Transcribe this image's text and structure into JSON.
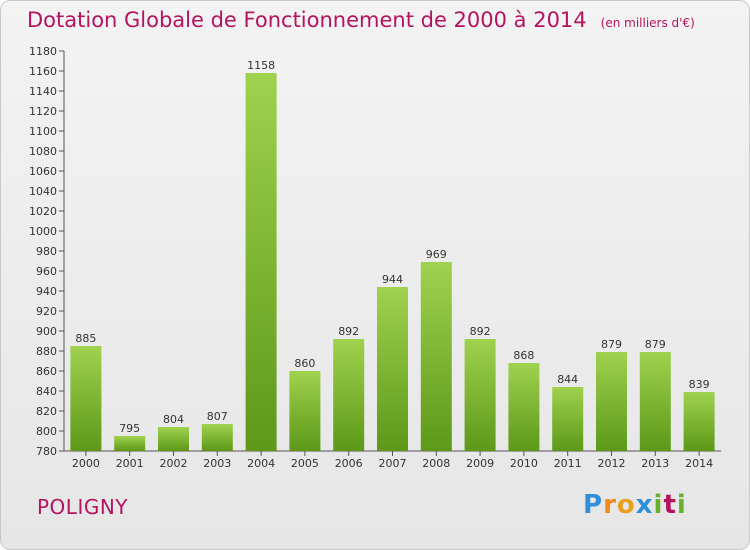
{
  "header": {
    "title": "Dotation Globale de Fonctionnement de 2000 à 2014",
    "subtitle": "(en milliers d'€)"
  },
  "footer": {
    "place": "POLIGNY",
    "logo": "Proxiti"
  },
  "colors": {
    "title": "#b5135f",
    "bar_top": "#9fd24e",
    "bar_bottom": "#5d9818",
    "axis": "#555555"
  },
  "chart_data": {
    "type": "bar",
    "title": "Dotation Globale de Fonctionnement de 2000 à 2014",
    "subtitle": "(en milliers d'€)",
    "categories": [
      "2000",
      "2001",
      "2002",
      "2003",
      "2004",
      "2005",
      "2006",
      "2007",
      "2008",
      "2009",
      "2010",
      "2011",
      "2012",
      "2013",
      "2014"
    ],
    "values": [
      885,
      795,
      804,
      807,
      1158,
      860,
      892,
      944,
      969,
      892,
      868,
      844,
      879,
      879,
      839
    ],
    "ylim": [
      780,
      1180
    ],
    "ytick_step": 20,
    "grid": false,
    "data_labels": true
  }
}
